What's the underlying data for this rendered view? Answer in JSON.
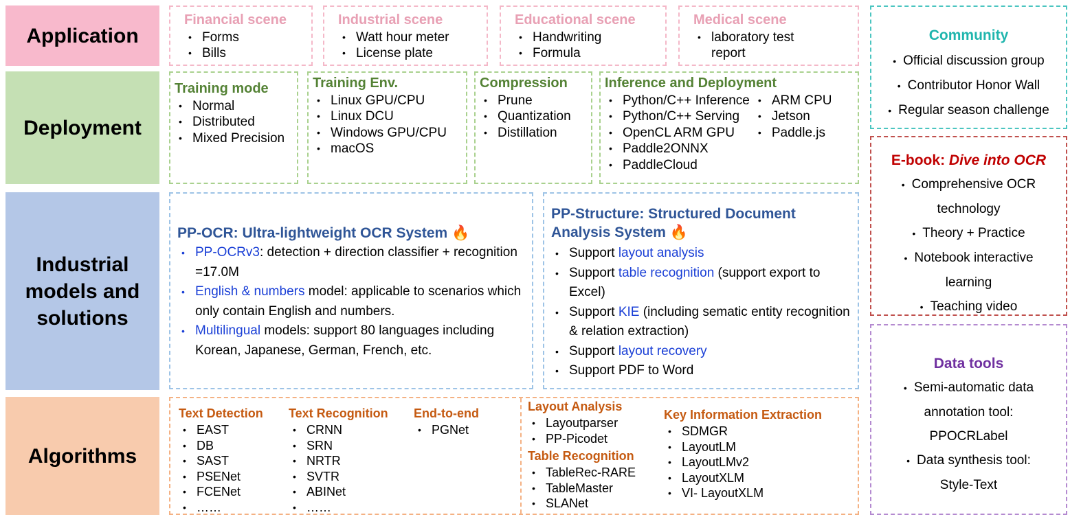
{
  "labels": {
    "application": "Application",
    "deployment": "Deployment",
    "industrial": "Industrial models and solutions",
    "algorithms": "Algorithms"
  },
  "application": [
    {
      "title": "Financial scene",
      "items": [
        "Forms",
        "Bills"
      ]
    },
    {
      "title": "Industrial scene",
      "items": [
        "Watt hour meter",
        "License plate"
      ]
    },
    {
      "title": "Educational scene",
      "items": [
        "Handwriting",
        "Formula"
      ]
    },
    {
      "title": "Medical scene",
      "items": [
        "laboratory test report"
      ]
    }
  ],
  "deployment": [
    {
      "title": "Training mode",
      "items": [
        "Normal",
        "Distributed",
        "Mixed Precision"
      ]
    },
    {
      "title": "Training Env.",
      "items": [
        "Linux GPU/CPU",
        "Linux DCU",
        "Windows GPU/CPU",
        "macOS"
      ]
    },
    {
      "title": "Compression",
      "items": [
        "Prune",
        "Quantization",
        "Distillation"
      ]
    },
    {
      "title": "Inference and Deployment",
      "items": [
        "Python/C++ Inference",
        "Python/C++ Serving",
        "OpenCL ARM GPU",
        "Paddle2ONNX",
        "PaddleCloud"
      ],
      "items2": [
        "ARM CPU",
        "Jetson",
        "Paddle.js"
      ]
    }
  ],
  "ppocr": {
    "title": "PP-OCR: Ultra-lightweight OCR System 🔥",
    "items": [
      {
        "link": "PP-OCRv3",
        "text": ": detection + direction classifier + recognition =17.0M"
      },
      {
        "link": "English & numbers",
        "text": " model: applicable to scenarios which only contain English and numbers."
      },
      {
        "link": "Multilingual",
        "text": " models: support 80 languages including Korean, Japanese, German, French, etc."
      }
    ]
  },
  "ppstructure": {
    "title": "PP-Structure: Structured Document Analysis System 🔥",
    "items": [
      {
        "pre": "Support ",
        "link": "layout analysis",
        "text": ""
      },
      {
        "pre": "Support ",
        "link": "table recognition",
        "text": " (support export to Excel)"
      },
      {
        "pre": "Support ",
        "link": "KIE",
        "text": " (including sematic entity recognition & relation extraction)"
      },
      {
        "pre": "Support ",
        "link": "layout recovery",
        "text": ""
      },
      {
        "pre": "Support PDF to Word",
        "link": "",
        "text": ""
      }
    ]
  },
  "algorithms": {
    "text_detection": {
      "title": "Text Detection",
      "items": [
        "EAST",
        "DB",
        "SAST",
        "PSENet",
        "FCENet",
        "……"
      ]
    },
    "text_recognition": {
      "title": "Text Recognition",
      "items": [
        "CRNN",
        "SRN",
        "NRTR",
        "SVTR",
        "ABINet",
        "……"
      ]
    },
    "end_to_end": {
      "title": "End-to-end",
      "items": [
        "PGNet"
      ]
    },
    "layout_analysis": {
      "title": "Layout Analysis",
      "items": [
        "Layoutparser",
        "PP-Picodet"
      ]
    },
    "table_recognition": {
      "title": "Table Recognition",
      "items": [
        "TableRec-RARE",
        "TableMaster",
        "SLANet"
      ]
    },
    "kie": {
      "title": "Key Information Extraction",
      "items": [
        "SDMGR",
        "LayoutLM",
        "LayoutLMv2",
        "LayoutXLM",
        "VI- LayoutXLM"
      ]
    }
  },
  "community": {
    "title": "Community",
    "items": [
      "Official discussion group",
      "Contributor Honor Wall",
      "Regular season challenge"
    ]
  },
  "ebook": {
    "title_prefix": "E-book: ",
    "title_em": "Dive into OCR",
    "items": [
      "Comprehensive OCR technology",
      "Theory + Practice",
      "Notebook interactive learning",
      "Teaching video"
    ]
  },
  "datatools": {
    "title": "Data tools",
    "items": [
      "Semi-automatic data annotation tool: PPOCRLabel",
      "Data synthesis tool: Style-Text"
    ]
  },
  "colors": {
    "application": "#f8b9cc",
    "deployment": "#c5e0b4",
    "industrial": "#b4c7e7",
    "algorithms": "#f8cbad",
    "link": "#1a3fd6"
  }
}
